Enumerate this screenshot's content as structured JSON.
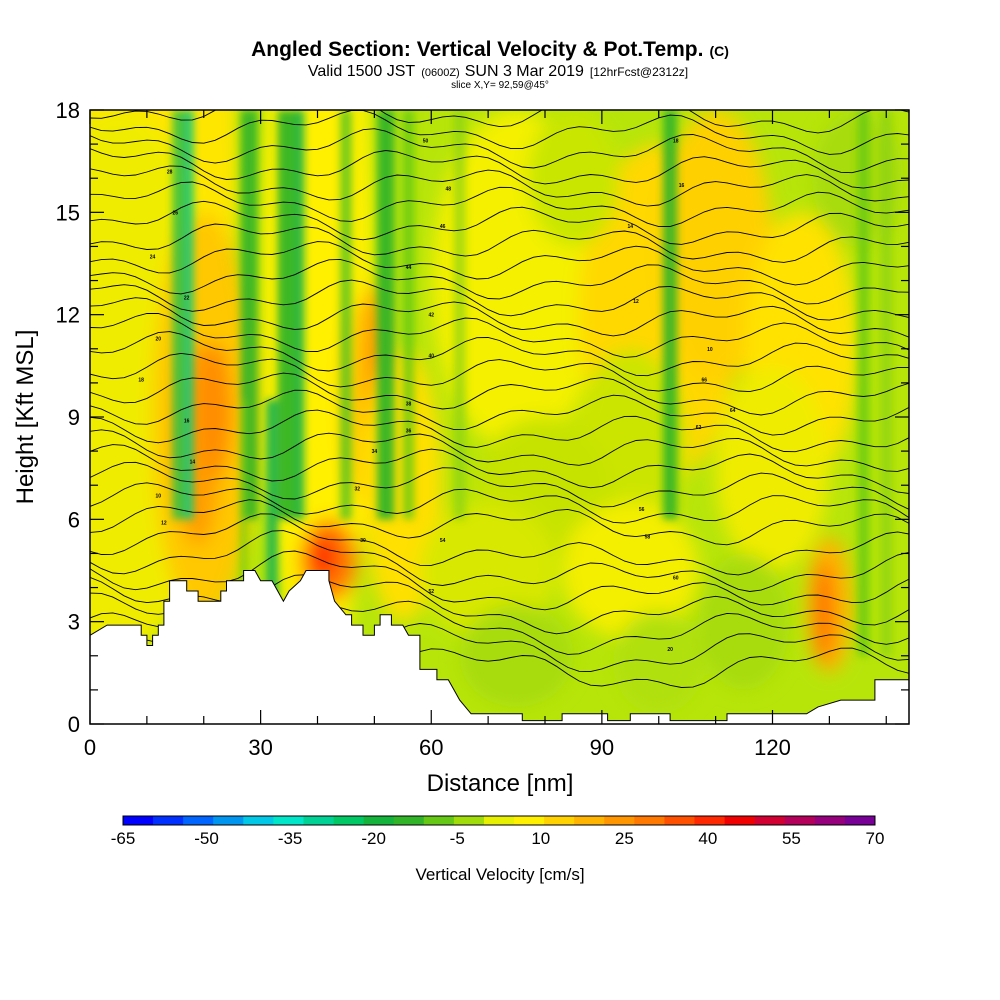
{
  "title": {
    "main": "Angled Section: Vertical Velocity & Pot.Temp.",
    "main_suffix": "(C)",
    "valid_prefix": "Valid 1500 JST",
    "valid_zulu": "(0600Z)",
    "valid_date": "SUN 3 Mar 2019",
    "forecast": "[12hrFcst@2312z]",
    "slice": "slice X,Y= 92,59@45°"
  },
  "chart_data": {
    "type": "heatmap",
    "xlabel": "Distance [nm]",
    "ylabel": "Height [Kft MSL]",
    "xlim": [
      0,
      144
    ],
    "ylim": [
      0,
      18
    ],
    "x_ticks": [
      0,
      30,
      60,
      90,
      120
    ],
    "y_ticks": [
      0,
      3,
      6,
      9,
      12,
      15,
      18
    ],
    "colorbar": {
      "title": "Vertical Velocity [cm/s]",
      "range": [
        -65,
        70
      ],
      "labels": [
        -65,
        -50,
        -35,
        -20,
        -5,
        10,
        25,
        40,
        55,
        70
      ],
      "colors": [
        "#0000ff",
        "#0030ff",
        "#0064ff",
        "#0096f0",
        "#00c8e6",
        "#00e6c8",
        "#00d296",
        "#00c864",
        "#14b43c",
        "#32b428",
        "#64c814",
        "#a0dc0a",
        "#e6f000",
        "#fff000",
        "#ffd200",
        "#ffb400",
        "#ff9600",
        "#ff7800",
        "#ff5000",
        "#ff2800",
        "#f00000",
        "#d20032",
        "#b4005a",
        "#96007d",
        "#780096"
      ]
    },
    "terrain_kft": [
      [
        0,
        2.6
      ],
      [
        3,
        2.9
      ],
      [
        9,
        2.9
      ],
      [
        9,
        2.6
      ],
      [
        10,
        2.6
      ],
      [
        10,
        2.3
      ],
      [
        11,
        2.3
      ],
      [
        11,
        2.6
      ],
      [
        12,
        2.6
      ],
      [
        12,
        2.9
      ],
      [
        13,
        2.9
      ],
      [
        13,
        3.6
      ],
      [
        14,
        3.6
      ],
      [
        14,
        4.2
      ],
      [
        17,
        4.2
      ],
      [
        17,
        3.9
      ],
      [
        19,
        3.9
      ],
      [
        19,
        3.6
      ],
      [
        23,
        3.6
      ],
      [
        23,
        3.9
      ],
      [
        24,
        3.9
      ],
      [
        24,
        4.2
      ],
      [
        27,
        4.2
      ],
      [
        27,
        4.5
      ],
      [
        29,
        4.5
      ],
      [
        30,
        4.2
      ],
      [
        32,
        4.2
      ],
      [
        33,
        3.9
      ],
      [
        34,
        3.6
      ],
      [
        35,
        3.9
      ],
      [
        37,
        4.2
      ],
      [
        38,
        4.5
      ],
      [
        42,
        4.5
      ],
      [
        42,
        4.2
      ],
      [
        43,
        3.6
      ],
      [
        45,
        3.2
      ],
      [
        46,
        3.2
      ],
      [
        46,
        2.9
      ],
      [
        48,
        2.9
      ],
      [
        48,
        2.6
      ],
      [
        50,
        2.6
      ],
      [
        50,
        2.9
      ],
      [
        51,
        2.9
      ],
      [
        51,
        3.2
      ],
      [
        53,
        3.2
      ],
      [
        53,
        2.9
      ],
      [
        55,
        2.9
      ],
      [
        56,
        2.6
      ],
      [
        58,
        2.6
      ],
      [
        58,
        1.6
      ],
      [
        61,
        1.6
      ],
      [
        61,
        1.3
      ],
      [
        63,
        1.3
      ],
      [
        64,
        1.0
      ],
      [
        65,
        0.7
      ],
      [
        67,
        0.3
      ],
      [
        76,
        0.3
      ],
      [
        76,
        0.1
      ],
      [
        83,
        0.1
      ],
      [
        83,
        0.3
      ],
      [
        91,
        0.3
      ],
      [
        91,
        0.1
      ],
      [
        95,
        0.1
      ],
      [
        95,
        0.3
      ],
      [
        102,
        0.3
      ],
      [
        102,
        0.1
      ],
      [
        112,
        0.1
      ],
      [
        112,
        0.3
      ],
      [
        126,
        0.3
      ],
      [
        128,
        0.5
      ],
      [
        132,
        0.7
      ],
      [
        138,
        0.7
      ],
      [
        138,
        1.3
      ],
      [
        144,
        1.3
      ],
      [
        144,
        1.4
      ]
    ],
    "isentrope_labels": [
      "10",
      "12",
      "14",
      "16",
      "18",
      "20",
      "22",
      "24",
      "26",
      "28",
      "30",
      "32",
      "34",
      "36",
      "38",
      "40",
      "42",
      "44",
      "46",
      "48",
      "50",
      "52",
      "54",
      "56",
      "58",
      "60",
      "62",
      "64",
      "66"
    ]
  }
}
